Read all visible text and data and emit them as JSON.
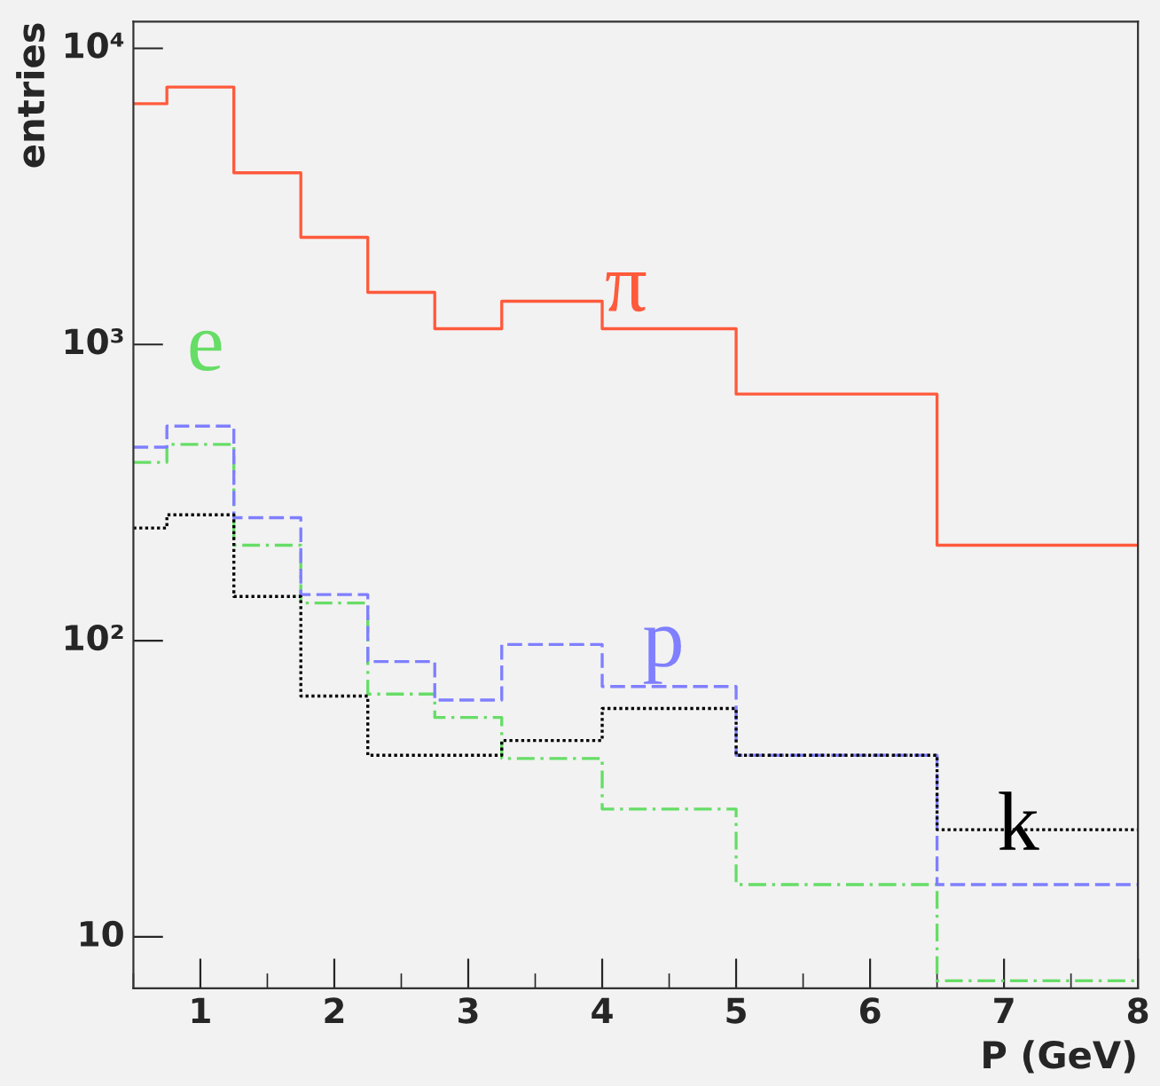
{
  "chart_data": {
    "type": "step",
    "xlabel": "P (GeV)",
    "ylabel": "entries",
    "x": [
      0.5,
      0.75,
      1.25,
      1.75,
      2.25,
      2.75,
      3.25,
      4.0,
      5.0,
      6.5,
      8.0
    ],
    "series": [
      {
        "name": "π",
        "color": "#ff5a3c",
        "line_style": "solid",
        "values": [
          6500,
          7400,
          3800,
          2300,
          1500,
          1130,
          1400,
          1130,
          680,
          210,
          210
        ]
      },
      {
        "name": "e",
        "color": "#66dd66",
        "line_style": "dashdot",
        "values": [
          400,
          460,
          210,
          134,
          66,
          55,
          40,
          27,
          15,
          7.1,
          7.1
        ]
      },
      {
        "name": "p",
        "color": "#7f7fff",
        "line_style": "dashed",
        "values": [
          450,
          530,
          260,
          143,
          85,
          63,
          97,
          70,
          41,
          15,
          15
        ]
      },
      {
        "name": "k",
        "color": "#000000",
        "line_style": "dotted",
        "values": [
          240,
          266,
          141,
          65,
          41,
          41,
          46,
          59,
          41,
          23,
          23
        ]
      }
    ],
    "log": "y",
    "xlim": [
      0.5,
      8
    ],
    "xticks": [
      1,
      2,
      3,
      4,
      5,
      6,
      7,
      8
    ],
    "ylim": [
      6.7,
      12300
    ],
    "yticks": [
      {
        "value": 10,
        "label": "10"
      },
      {
        "value": 100,
        "label": "10²"
      },
      {
        "value": 1000,
        "label": "10³"
      },
      {
        "value": 10000,
        "label": "10⁴"
      }
    ],
    "grid": false,
    "legend": false
  }
}
